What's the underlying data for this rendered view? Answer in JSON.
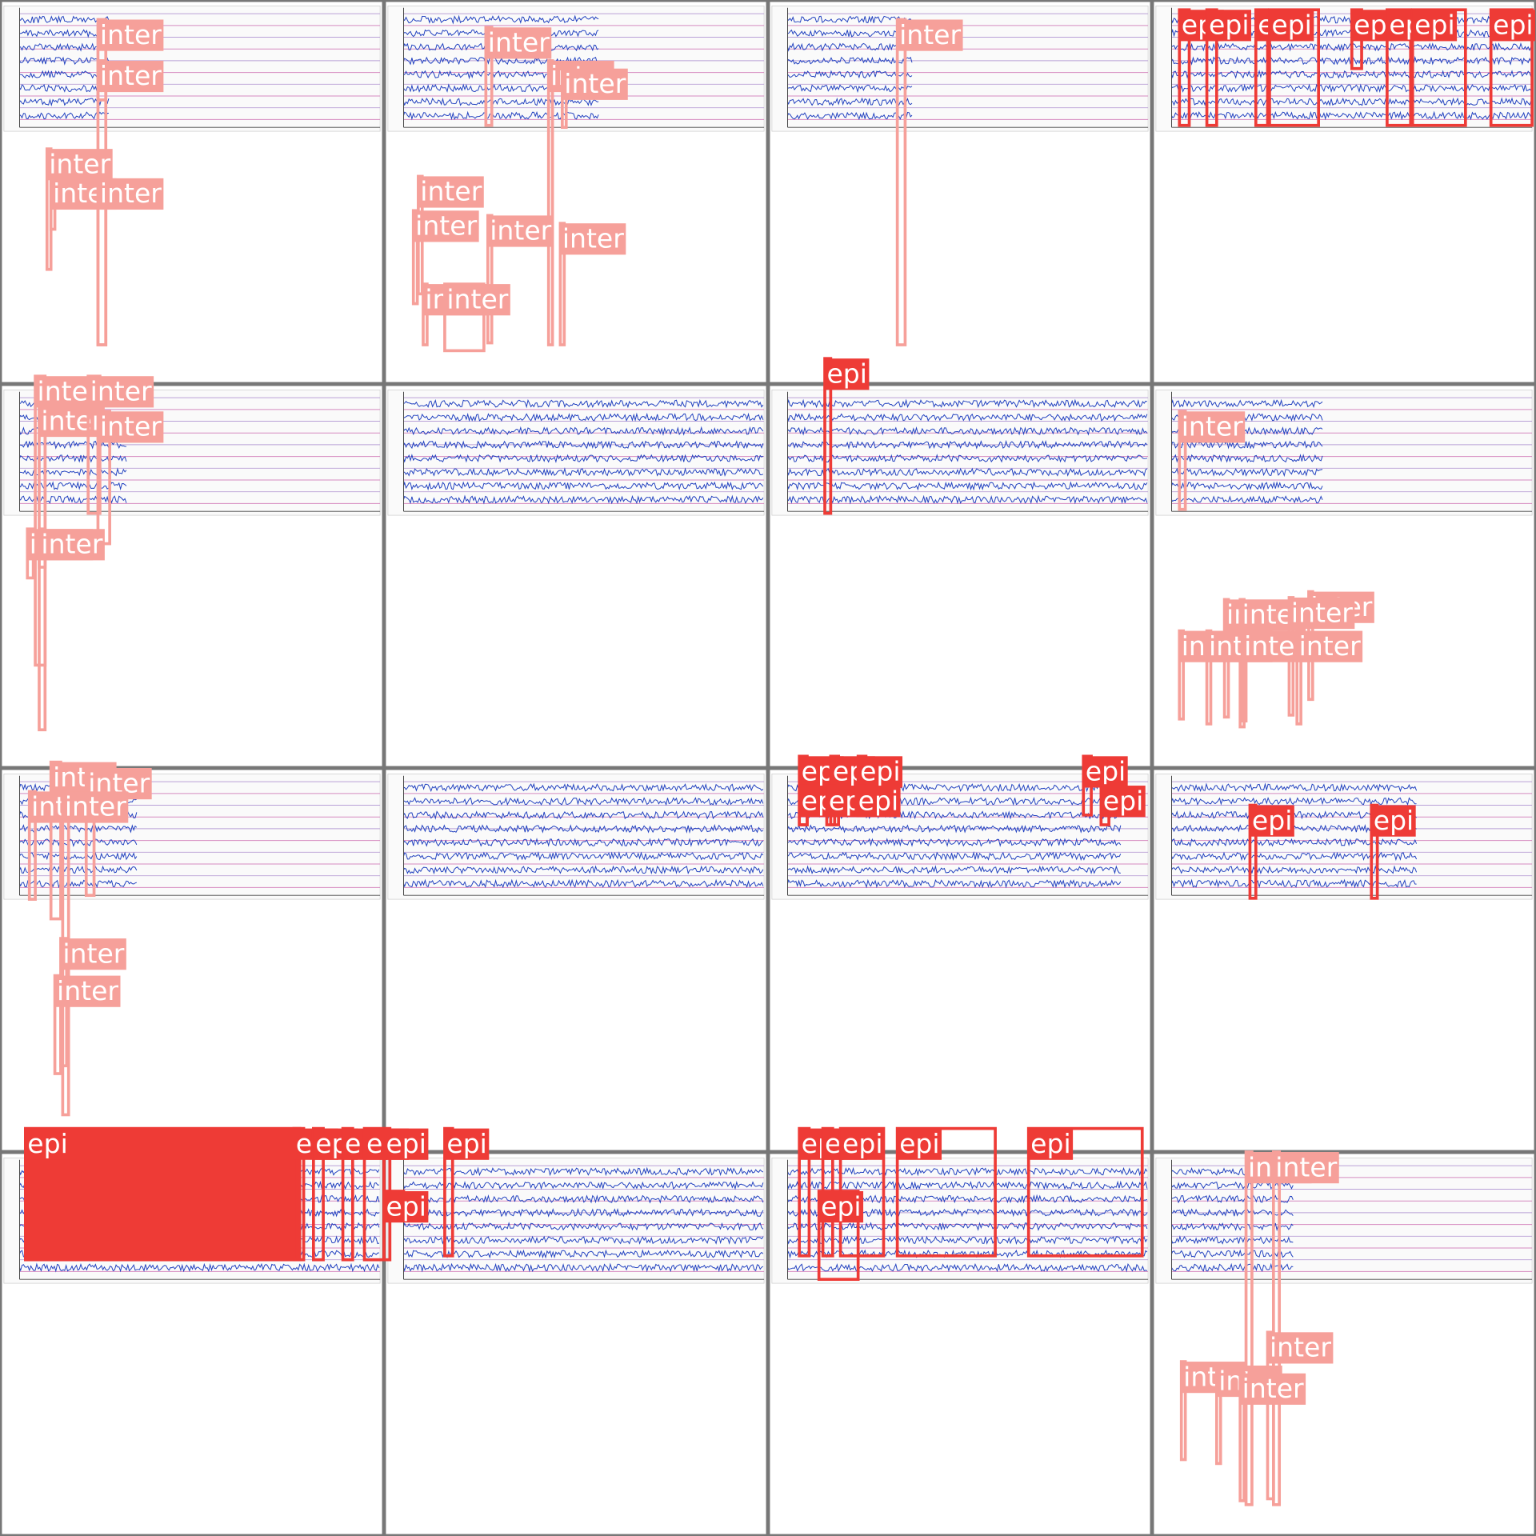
{
  "tiles": [
    {
      "detections": [
        "inter",
        "inter",
        "inter",
        "inter",
        "inter"
      ]
    },
    {
      "detections": [
        "inter",
        "inter",
        "inter",
        "inter",
        "inter",
        "inter",
        "inter",
        "inter",
        "inter"
      ]
    },
    {
      "detections": [
        "inter"
      ]
    },
    {
      "detections": [
        "epi",
        "epi",
        "epi",
        "epi",
        "epi",
        "epi",
        "epi",
        "epi"
      ]
    },
    {
      "detections": [
        "inter",
        "inter",
        "inter",
        "inter",
        "inter",
        "inter"
      ]
    },
    {
      "detections": []
    },
    {
      "detections": [
        "epi"
      ]
    },
    {
      "detections": [
        "inter",
        "inter",
        "inter",
        "inter",
        "inter",
        "inter",
        "inter",
        "inter",
        "inter"
      ]
    },
    {
      "detections": [
        "inter",
        "inter",
        "inter",
        "inter",
        "inter",
        "inter"
      ]
    },
    {
      "detections": []
    },
    {
      "detections": [
        "epi",
        "epi",
        "epi",
        "epi",
        "epi",
        "epi",
        "epi",
        "epi"
      ]
    },
    {
      "detections": [
        "epi",
        "epi"
      ]
    },
    {
      "detections": [
        "epi",
        "epi",
        "epi",
        "epi",
        "epi"
      ]
    },
    {
      "detections": [
        "epi",
        "epi",
        "epi"
      ]
    },
    {
      "detections": [
        "epi",
        "epi",
        "epi",
        "epi",
        "epi",
        "epi"
      ]
    },
    {
      "detections": [
        "inter",
        "inter",
        "inter",
        "inter",
        "inter",
        "inter"
      ]
    }
  ]
}
